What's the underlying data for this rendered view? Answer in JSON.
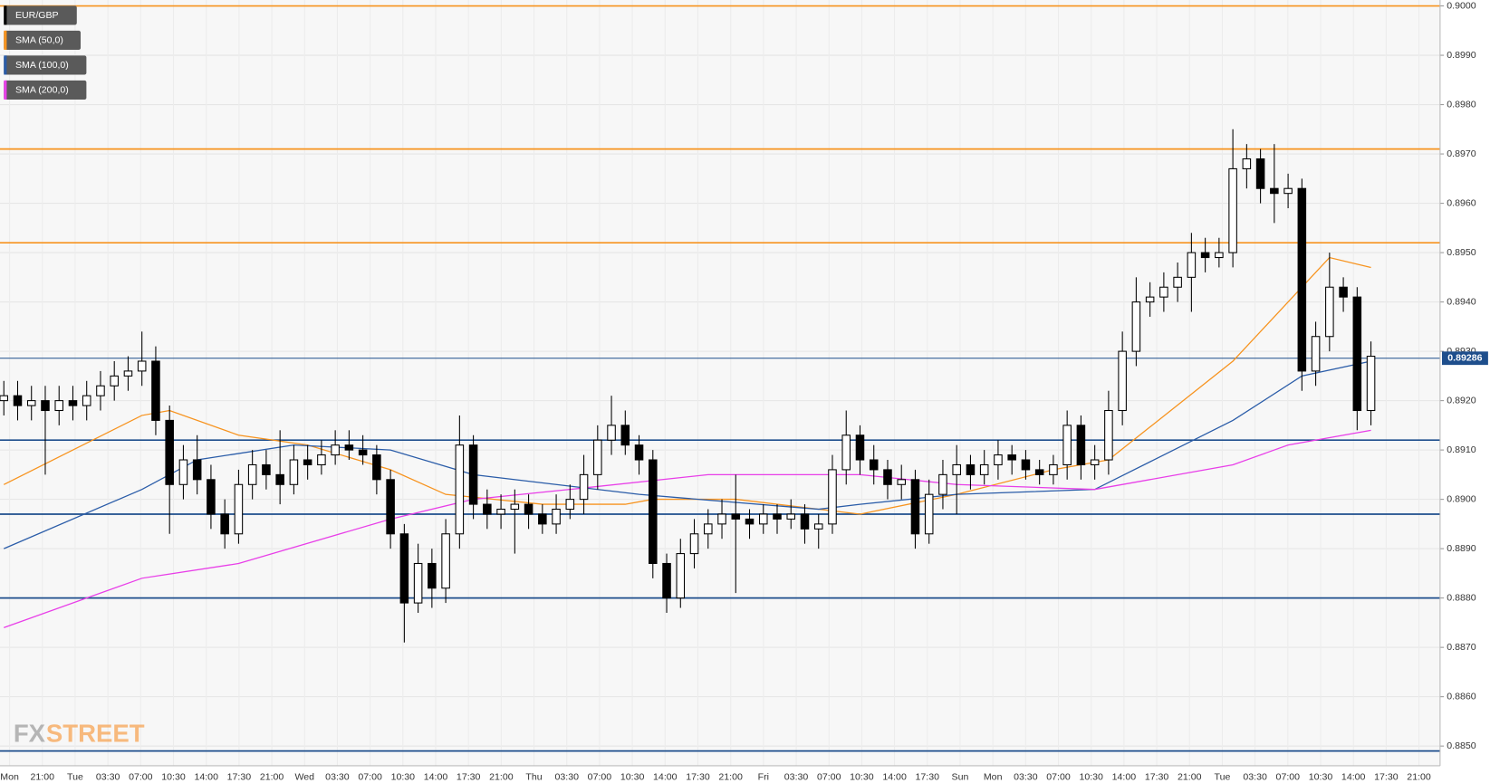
{
  "chart_data": {
    "type": "candlestick",
    "ylim": [
      0.8846,
      0.90012
    ],
    "yticks": [
      {
        "value": 0.885,
        "label": "0.8850"
      },
      {
        "value": 0.886,
        "label": "0.8860"
      },
      {
        "value": 0.887,
        "label": "0.8870"
      },
      {
        "value": 0.888,
        "label": "0.8880"
      },
      {
        "value": 0.889,
        "label": "0.8890"
      },
      {
        "value": 0.89,
        "label": "0.8900"
      },
      {
        "value": 0.891,
        "label": "0.8910"
      },
      {
        "value": 0.892,
        "label": "0.8920"
      },
      {
        "value": 0.893,
        "label": "0.8930"
      },
      {
        "value": 0.894,
        "label": "0.8940"
      },
      {
        "value": 0.895,
        "label": "0.8950"
      },
      {
        "value": 0.896,
        "label": "0.8960"
      },
      {
        "value": 0.897,
        "label": "0.8970"
      },
      {
        "value": 0.898,
        "label": "0.8980"
      },
      {
        "value": 0.899,
        "label": "0.8990"
      },
      {
        "value": 0.9,
        "label": "0.9000"
      }
    ],
    "grid": true,
    "xlabels": [
      "Mon",
      "21:00",
      "Tue",
      "03:30",
      "07:00",
      "10:30",
      "14:00",
      "17:30",
      "21:00",
      "Wed",
      "03:30",
      "07:00",
      "10:30",
      "14:00",
      "17:30",
      "21:00",
      "Thu",
      "03:30",
      "07:00",
      "10:30",
      "14:00",
      "17:30",
      "21:00",
      "Fri",
      "03:30",
      "07:00",
      "10:30",
      "14:00",
      "17:30",
      "Sun",
      "Mon",
      "03:30",
      "07:00",
      "10:30",
      "14:00",
      "17:30",
      "21:00",
      "Tue",
      "03:30",
      "07:00",
      "10:30",
      "14:00",
      "17:30",
      "21:00"
    ],
    "legend": [
      "EUR/GBP",
      "SMA (50,0)",
      "SMA (100,0)",
      "SMA (200,0)"
    ],
    "legend_colors": [
      "#000000",
      "#f7931e",
      "#2a5ca8",
      "#e83ee8"
    ],
    "candles": {
      "open": [
        0.892,
        0.8921,
        0.8919,
        0.892,
        0.8918,
        0.892,
        0.8919,
        0.8921,
        0.8923,
        0.8925,
        0.8926,
        0.8928,
        0.8916,
        0.8903,
        0.8908,
        0.8904,
        0.8897,
        0.8893,
        0.8903,
        0.8907,
        0.8905,
        0.8903,
        0.8908,
        0.8907,
        0.8909,
        0.8911,
        0.891,
        0.8909,
        0.8904,
        0.8893,
        0.8879,
        0.8887,
        0.8882,
        0.8893,
        0.8911,
        0.8899,
        0.8897,
        0.8898,
        0.8899,
        0.8897,
        0.8895,
        0.8898,
        0.89,
        0.8905,
        0.8912,
        0.8915,
        0.8911,
        0.8908,
        0.8887,
        0.888,
        0.8889,
        0.8893,
        0.8895,
        0.8897,
        0.8896,
        0.8895,
        0.8897,
        0.8896,
        0.8897,
        0.8894,
        0.8895,
        0.8906,
        0.8913,
        0.8908,
        0.8906,
        0.8903,
        0.8904,
        0.8893,
        0.8901,
        0.8905,
        0.8907,
        0.8905,
        0.8907,
        0.8909,
        0.8908,
        0.8906,
        0.8905,
        0.8907,
        0.8915,
        0.8907,
        0.8908,
        0.8918,
        0.893,
        0.894,
        0.8941,
        0.8943,
        0.8945,
        0.895,
        0.8949,
        0.895,
        0.8967,
        0.8969,
        0.8963,
        0.8962,
        0.8963,
        0.8926,
        0.8933,
        0.8943,
        0.8941,
        0.8918
      ],
      "high": [
        0.8924,
        0.8924,
        0.8923,
        0.8923,
        0.8923,
        0.8923,
        0.8924,
        0.8926,
        0.8928,
        0.8929,
        0.8934,
        0.8931,
        0.8919,
        0.8911,
        0.8913,
        0.8907,
        0.89,
        0.8906,
        0.891,
        0.891,
        0.8914,
        0.8911,
        0.8911,
        0.8912,
        0.8914,
        0.8914,
        0.8913,
        0.8911,
        0.8906,
        0.8895,
        0.8891,
        0.889,
        0.8896,
        0.8917,
        0.8913,
        0.8902,
        0.8901,
        0.8902,
        0.8901,
        0.8899,
        0.8901,
        0.8903,
        0.8909,
        0.8915,
        0.8921,
        0.8918,
        0.8913,
        0.891,
        0.8889,
        0.8892,
        0.8896,
        0.8898,
        0.89,
        0.8905,
        0.8898,
        0.8899,
        0.8899,
        0.89,
        0.8899,
        0.8897,
        0.8909,
        0.8918,
        0.8915,
        0.8911,
        0.8908,
        0.8907,
        0.8906,
        0.8904,
        0.8908,
        0.8911,
        0.8909,
        0.891,
        0.8912,
        0.8911,
        0.891,
        0.8908,
        0.8909,
        0.8918,
        0.8917,
        0.8911,
        0.8922,
        0.8934,
        0.8945,
        0.8944,
        0.8946,
        0.8948,
        0.8954,
        0.8953,
        0.8953,
        0.8975,
        0.8972,
        0.8971,
        0.8972,
        0.8966,
        0.8965,
        0.8936,
        0.895,
        0.8945,
        0.8943,
        0.8932
      ],
      "low": [
        0.8917,
        0.8916,
        0.8916,
        0.8905,
        0.8915,
        0.8916,
        0.8916,
        0.8918,
        0.892,
        0.8922,
        0.8923,
        0.8913,
        0.8893,
        0.89,
        0.8901,
        0.8894,
        0.889,
        0.8891,
        0.89,
        0.8902,
        0.8899,
        0.8901,
        0.8904,
        0.8905,
        0.8907,
        0.8908,
        0.8907,
        0.8901,
        0.889,
        0.8871,
        0.8877,
        0.8878,
        0.8879,
        0.889,
        0.8896,
        0.8894,
        0.8894,
        0.8889,
        0.8894,
        0.8893,
        0.8893,
        0.8896,
        0.8897,
        0.8902,
        0.8909,
        0.8909,
        0.8905,
        0.8884,
        0.8877,
        0.8878,
        0.8886,
        0.889,
        0.8892,
        0.8881,
        0.8892,
        0.8893,
        0.8893,
        0.8894,
        0.8891,
        0.889,
        0.8893,
        0.8903,
        0.8905,
        0.8903,
        0.89,
        0.89,
        0.889,
        0.8891,
        0.8898,
        0.8897,
        0.8902,
        0.8903,
        0.8904,
        0.8905,
        0.8904,
        0.8903,
        0.8903,
        0.8904,
        0.8904,
        0.8904,
        0.8905,
        0.8915,
        0.8927,
        0.8937,
        0.8938,
        0.894,
        0.8938,
        0.8946,
        0.8947,
        0.8947,
        0.8963,
        0.896,
        0.8956,
        0.8959,
        0.8922,
        0.8923,
        0.893,
        0.8938,
        0.8914,
        0.8915
      ],
      "close": [
        0.8921,
        0.8919,
        0.892,
        0.8918,
        0.892,
        0.8919,
        0.8921,
        0.8923,
        0.8925,
        0.8926,
        0.8928,
        0.8916,
        0.8903,
        0.8908,
        0.8904,
        0.8897,
        0.8893,
        0.8903,
        0.8907,
        0.8905,
        0.8903,
        0.8908,
        0.8907,
        0.8909,
        0.8911,
        0.891,
        0.8909,
        0.8904,
        0.8893,
        0.8879,
        0.8887,
        0.8882,
        0.8893,
        0.8911,
        0.8899,
        0.8897,
        0.8898,
        0.8899,
        0.8897,
        0.8895,
        0.8898,
        0.89,
        0.8905,
        0.8912,
        0.8915,
        0.8911,
        0.8908,
        0.8887,
        0.888,
        0.8889,
        0.8893,
        0.8895,
        0.8897,
        0.8896,
        0.8895,
        0.8897,
        0.8896,
        0.8897,
        0.8894,
        0.8895,
        0.8906,
        0.8913,
        0.8908,
        0.8906,
        0.8903,
        0.8904,
        0.8893,
        0.8901,
        0.8905,
        0.8907,
        0.8905,
        0.8907,
        0.8909,
        0.8908,
        0.8906,
        0.8905,
        0.8907,
        0.8915,
        0.8907,
        0.8908,
        0.8918,
        0.893,
        0.894,
        0.8941,
        0.8943,
        0.8945,
        0.895,
        0.8949,
        0.895,
        0.8967,
        0.8969,
        0.8963,
        0.8962,
        0.8963,
        0.8926,
        0.8933,
        0.8943,
        0.8941,
        0.8918,
        0.8929
      ]
    },
    "series": [
      {
        "name": "SMA (50,0)",
        "color": "#f7931e",
        "x": [
          0,
          10,
          12,
          17,
          22,
          28,
          32,
          39,
          45,
          47,
          53,
          62,
          69,
          76,
          80,
          89,
          94,
          96,
          99
        ],
        "values": [
          0.8903,
          0.8917,
          0.8918,
          0.8913,
          0.8911,
          0.8906,
          0.8901,
          0.8899,
          0.8899,
          0.89,
          0.89,
          0.8897,
          0.8901,
          0.8906,
          0.8908,
          0.8928,
          0.8943,
          0.8949,
          0.8947
        ]
      },
      {
        "name": "SMA (100,0)",
        "color": "#2a5ca8",
        "x": [
          0,
          10,
          14,
          21,
          28,
          34,
          46,
          59,
          62,
          69,
          79,
          89,
          94,
          99
        ],
        "values": [
          0.889,
          0.8902,
          0.8908,
          0.8911,
          0.891,
          0.8905,
          0.8901,
          0.8898,
          0.8899,
          0.8901,
          0.8902,
          0.8916,
          0.8925,
          0.8928
        ]
      },
      {
        "name": "SMA (200,0)",
        "color": "#e83ee8",
        "x": [
          0,
          10,
          17,
          28,
          34,
          41,
          51,
          62,
          69,
          79,
          89,
          93,
          99
        ],
        "values": [
          0.8874,
          0.8884,
          0.8887,
          0.8896,
          0.89,
          0.8902,
          0.8905,
          0.8905,
          0.8903,
          0.8902,
          0.8907,
          0.8911,
          0.8914
        ]
      }
    ],
    "levels": [
      {
        "value": 0.9,
        "color": "#f7931e"
      },
      {
        "value": 0.8971,
        "color": "#f7931e"
      },
      {
        "value": 0.8952,
        "color": "#f7931e"
      },
      {
        "value": 0.8912,
        "color": "#1e4e8c"
      },
      {
        "value": 0.8897,
        "color": "#1e4e8c"
      },
      {
        "value": 0.888,
        "color": "#1e4e8c"
      },
      {
        "value": 0.8849,
        "color": "#1e4e8c"
      }
    ],
    "current_price": {
      "value": 0.89286,
      "label": "0.89286"
    },
    "watermark": {
      "prefix": "FX",
      "suffix": "STREET"
    }
  }
}
